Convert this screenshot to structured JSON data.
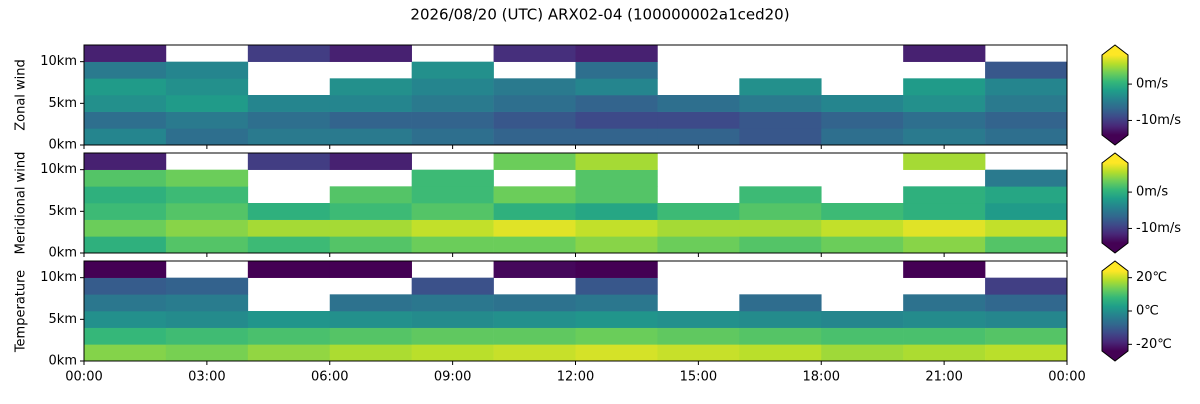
{
  "title": "2026/08/20 (UTC) ARX02-04 (100000002a1ced20)",
  "chart_data": [
    {
      "type": "heatmap",
      "ylabel": "Zonal wind",
      "colormap": "viridis",
      "colorbar_extend": "both",
      "x_bins": [
        0,
        2,
        4,
        6,
        8,
        10,
        12,
        14,
        16,
        18,
        20,
        22,
        24
      ],
      "y_bins": [
        0,
        2,
        4,
        6,
        8,
        10,
        12
      ],
      "ylim": [
        0,
        12
      ],
      "yticks": [
        {
          "value": 0,
          "label": "0km"
        },
        {
          "value": 5,
          "label": "5km"
        },
        {
          "value": 10,
          "label": "10km"
        }
      ],
      "zlim": [
        -14,
        8
      ],
      "zticks": [
        {
          "value": 0,
          "label": "0m/s"
        },
        {
          "value": -10,
          "label": "-10m/s"
        }
      ],
      "values": [
        [
          -4,
          -6,
          -5,
          -5,
          -6,
          -7,
          -7,
          -7,
          -8,
          -6,
          -5,
          -6
        ],
        [
          -6,
          -5,
          -6,
          -7,
          -7,
          -8,
          -9,
          -9,
          -8,
          -7,
          -6,
          -7
        ],
        [
          -3,
          -2,
          -4,
          -4,
          -5,
          -6,
          -7,
          -6,
          -5,
          -4,
          -3,
          -5
        ],
        [
          -2,
          -3,
          null,
          -3,
          -4,
          -5,
          -4,
          null,
          -3,
          null,
          -2,
          -4
        ],
        [
          -5,
          -4,
          null,
          null,
          -3,
          null,
          -6,
          null,
          null,
          null,
          null,
          -8
        ],
        [
          -12,
          null,
          -10,
          -12,
          null,
          -11,
          -12,
          null,
          null,
          null,
          -12,
          null
        ]
      ]
    },
    {
      "type": "heatmap",
      "ylabel": "Meridional wind",
      "colormap": "viridis",
      "colorbar_extend": "both",
      "x_bins": [
        0,
        2,
        4,
        6,
        8,
        10,
        12,
        14,
        16,
        18,
        20,
        22,
        24
      ],
      "y_bins": [
        0,
        2,
        4,
        6,
        8,
        10,
        12
      ],
      "ylim": [
        0,
        12
      ],
      "yticks": [
        {
          "value": 0,
          "label": "0km"
        },
        {
          "value": 5,
          "label": "5km"
        },
        {
          "value": 10,
          "label": "10km"
        }
      ],
      "zlim": [
        -14,
        8
      ],
      "zticks": [
        {
          "value": 0,
          "label": "0m/s"
        },
        {
          "value": -10,
          "label": "-10m/s"
        }
      ],
      "values": [
        [
          0,
          2,
          1,
          2,
          3,
          3,
          4,
          3,
          2,
          3,
          4,
          2
        ],
        [
          3,
          4,
          5,
          5,
          6,
          7,
          6,
          5,
          5,
          6,
          7,
          6
        ],
        [
          1,
          2,
          0,
          1,
          2,
          0,
          -1,
          1,
          2,
          1,
          0,
          -2
        ],
        [
          0,
          1,
          null,
          2,
          1,
          3,
          2,
          null,
          1,
          null,
          0,
          -1
        ],
        [
          2,
          3,
          null,
          null,
          1,
          null,
          2,
          null,
          null,
          null,
          null,
          -5
        ],
        [
          -12,
          null,
          -10,
          -12,
          null,
          3,
          5,
          null,
          null,
          null,
          5,
          null
        ]
      ]
    },
    {
      "type": "heatmap",
      "ylabel": "Temperature",
      "colormap": "viridis",
      "colorbar_extend": "both",
      "x_bins": [
        0,
        2,
        4,
        6,
        8,
        10,
        12,
        14,
        16,
        18,
        20,
        22,
        24
      ],
      "y_bins": [
        0,
        2,
        4,
        6,
        8,
        10,
        12
      ],
      "xlim": [
        0,
        24
      ],
      "xticks": [
        {
          "value": 0,
          "label": "00:00"
        },
        {
          "value": 3,
          "label": "03:00"
        },
        {
          "value": 6,
          "label": "06:00"
        },
        {
          "value": 9,
          "label": "09:00"
        },
        {
          "value": 12,
          "label": "12:00"
        },
        {
          "value": 15,
          "label": "15:00"
        },
        {
          "value": 18,
          "label": "18:00"
        },
        {
          "value": 21,
          "label": "21:00"
        },
        {
          "value": 24,
          "label": "00:00"
        }
      ],
      "ylim": [
        0,
        12
      ],
      "yticks": [
        {
          "value": 0,
          "label": "0km"
        },
        {
          "value": 5,
          "label": "5km"
        },
        {
          "value": 10,
          "label": "10km"
        }
      ],
      "zlim": [
        -24,
        24
      ],
      "zticks": [
        {
          "value": 20,
          "label": "20℃"
        },
        {
          "value": 0,
          "label": "0℃"
        },
        {
          "value": -20,
          "label": "-20℃"
        }
      ],
      "values": [
        [
          15,
          14,
          16,
          18,
          19,
          20,
          21,
          20,
          19,
          17,
          18,
          19
        ],
        [
          8,
          9,
          10,
          11,
          12,
          12,
          13,
          12,
          11,
          10,
          10,
          11
        ],
        [
          0,
          -1,
          1,
          0,
          -1,
          0,
          1,
          0,
          -1,
          -2,
          -1,
          -2
        ],
        [
          -5,
          -4,
          null,
          -6,
          -5,
          -6,
          -5,
          null,
          -7,
          null,
          -6,
          -8
        ],
        [
          -10,
          -9,
          null,
          null,
          -12,
          null,
          -11,
          null,
          null,
          null,
          null,
          -15
        ],
        [
          -25,
          null,
          -24,
          -25,
          null,
          -23,
          -25,
          null,
          null,
          null,
          -25,
          null
        ]
      ]
    }
  ]
}
